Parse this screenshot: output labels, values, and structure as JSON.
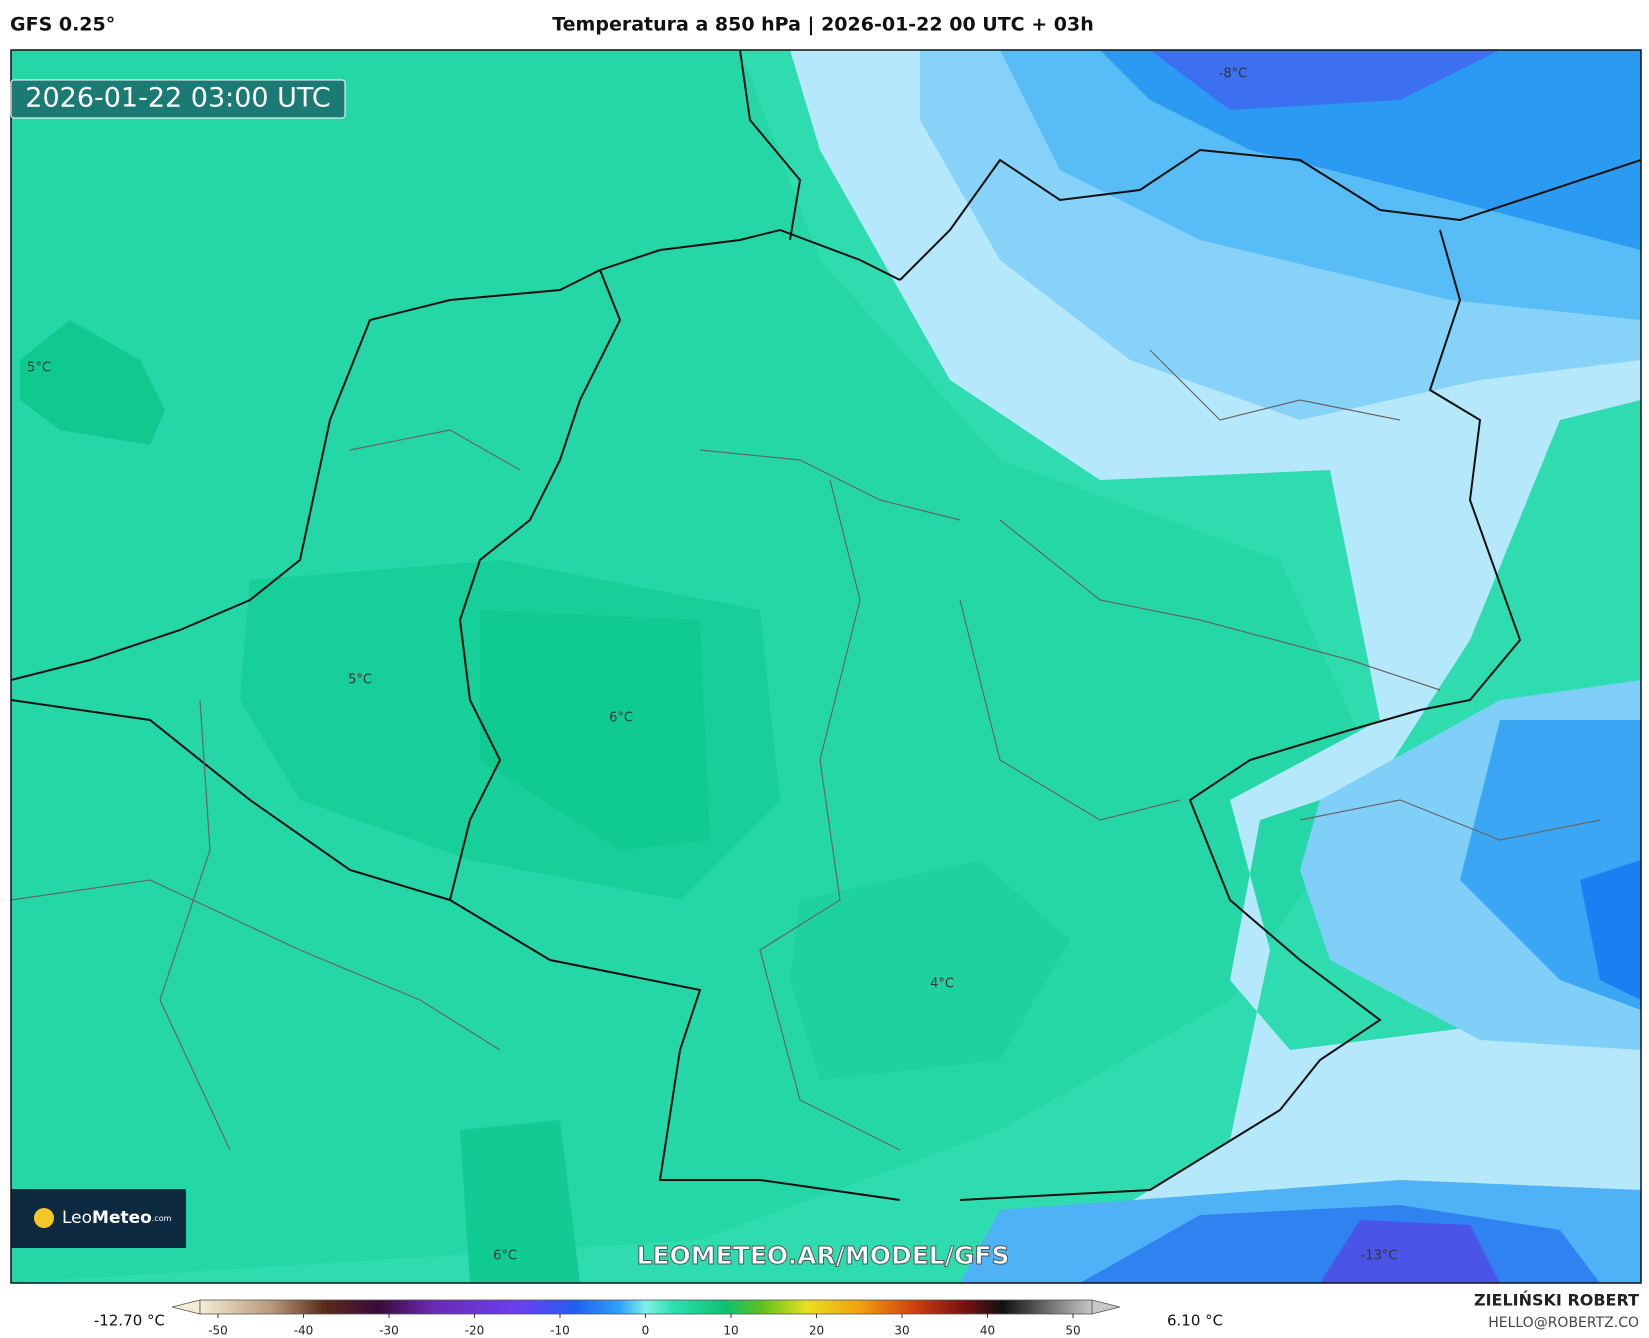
{
  "header": {
    "model": "GFS 0.25°",
    "title": "Temperatura a 850 hPa | 2026-01-22 00 UTC + 03h"
  },
  "map": {
    "timestamp": "2026-01-22 03:00 UTC",
    "watermark": "LEOMETEO.AR/MODEL/GFS",
    "logo": {
      "first": "Leo",
      "second": "Meteo",
      "suffix": ".com"
    },
    "contour_labels": [
      "-8°C",
      "5°C",
      "5°C",
      "6°C",
      "4°C",
      "6°C",
      "-13°C"
    ]
  },
  "colorbar": {
    "min_label": "-12.70 °C",
    "max_label": "6.10 °C",
    "ticks": [
      -50,
      -40,
      -30,
      -20,
      -10,
      0,
      10,
      20,
      30,
      40,
      50
    ]
  },
  "credits": {
    "author": "ZIELIŃSKI ROBERT",
    "email": "HELLO@ROBERTZ.CO"
  }
}
